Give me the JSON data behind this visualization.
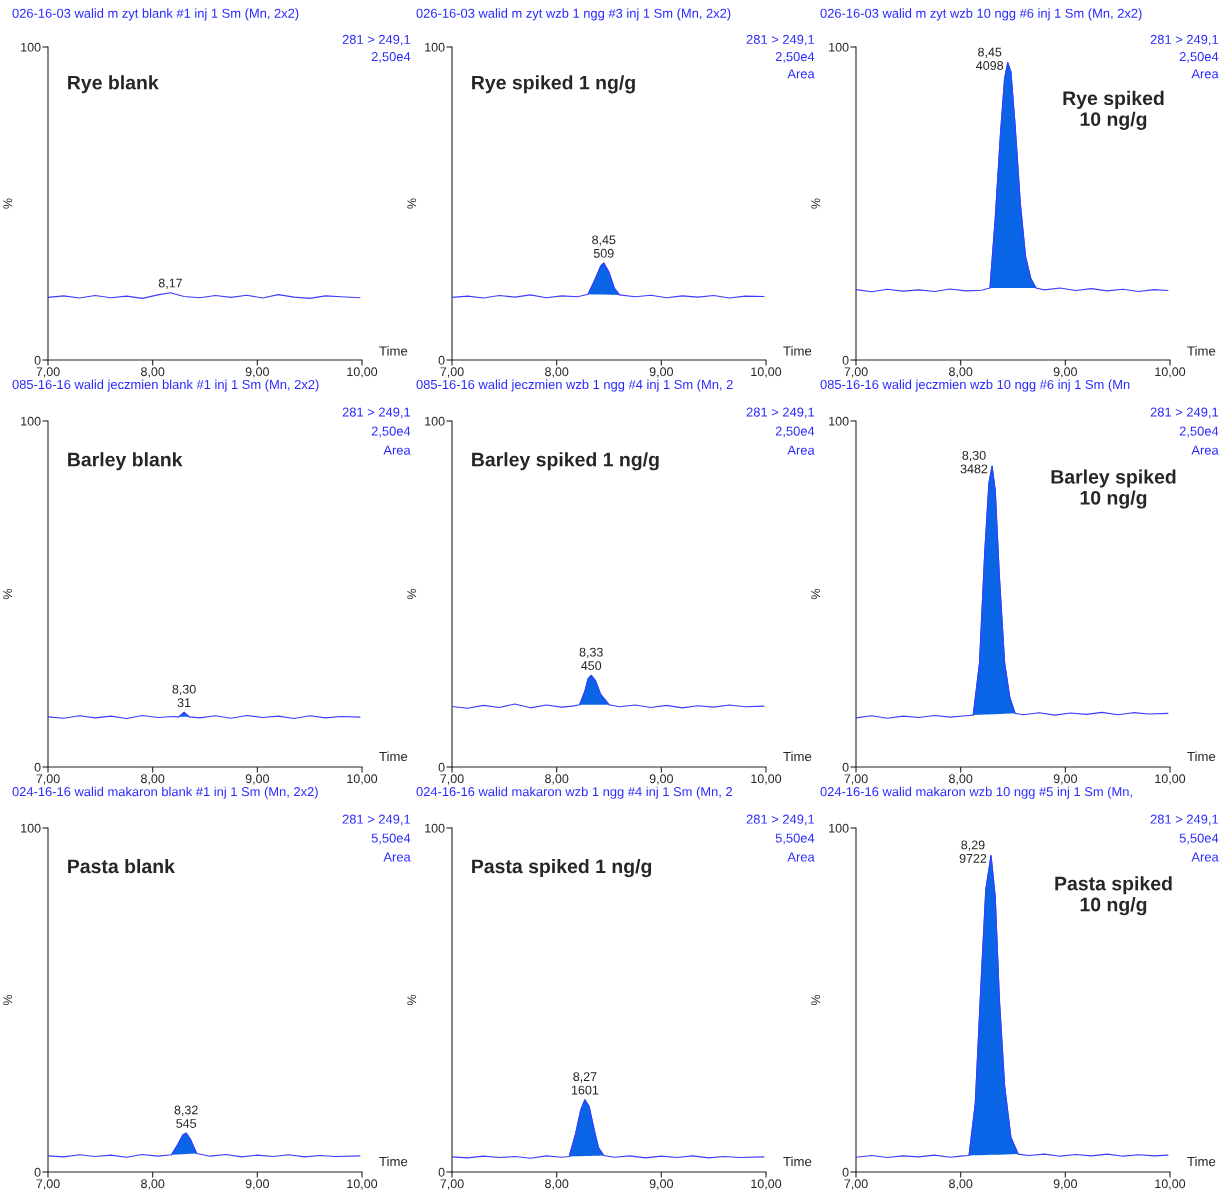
{
  "chart_data": [
    {
      "type": "line",
      "title": "026-16-03 walid m zyt blank #1 inj 1 Sm (Mn, 2x2)",
      "subtitle": "Rye blank",
      "xlabel": "Time",
      "ylabel": "%",
      "xlim": [
        7,
        10
      ],
      "ylim": [
        0,
        100
      ],
      "xticks": [
        {
          "value": 7,
          "label": "7,00"
        },
        {
          "value": 8,
          "label": "8,00"
        },
        {
          "value": 9,
          "label": "9,00"
        },
        {
          "value": 10,
          "label": "10,00"
        }
      ],
      "yticks": [
        0,
        100
      ],
      "grid": false,
      "annotations": [
        "281 > 249,1",
        "2,50e4",
        {
          "text": "8,17",
          "x": 8.17,
          "y": 21.5
        }
      ],
      "series": [
        {
          "type": "line",
          "color": "#3c3cff",
          "x": [
            7.0,
            7.15,
            7.3,
            7.45,
            7.6,
            7.75,
            7.9,
            8.05,
            8.17,
            8.3,
            8.45,
            8.6,
            8.75,
            8.9,
            9.05,
            9.2,
            9.35,
            9.5,
            9.65,
            9.8,
            9.98
          ],
          "values": [
            20,
            20.5,
            19.8,
            20.6,
            19.9,
            20.4,
            19.7,
            20.8,
            21.5,
            20.3,
            19.9,
            20.6,
            20.0,
            20.7,
            19.8,
            20.9,
            20.1,
            19.7,
            20.5,
            20.2,
            19.9
          ]
        }
      ]
    },
    {
      "type": "line",
      "title": "026-16-03 walid m zyt wzb 1 ngg #3 inj 1 Sm (Mn, 2x2)",
      "subtitle": "Rye spiked 1 ng/g",
      "xlabel": "Time",
      "ylabel": "%",
      "xlim": [
        7,
        10
      ],
      "ylim": [
        0,
        100
      ],
      "xticks": [
        {
          "value": 7,
          "label": "7,00"
        },
        {
          "value": 8,
          "label": "8,00"
        },
        {
          "value": 9,
          "label": "9,00"
        },
        {
          "value": 10,
          "label": "10,00"
        }
      ],
      "yticks": [
        0,
        100
      ],
      "grid": false,
      "annotations": [
        "281 > 249,1",
        "2,50e4",
        "Area",
        {
          "text": "8,45\n509",
          "x": 8.45,
          "y": 31
        }
      ],
      "series": [
        {
          "type": "line",
          "color": "#3c3cff",
          "x": [
            7.0,
            7.15,
            7.3,
            7.45,
            7.6,
            7.75,
            7.9,
            8.05,
            8.2,
            8.3,
            8.37,
            8.42,
            8.45,
            8.5,
            8.55,
            8.6,
            8.75,
            8.9,
            9.05,
            9.2,
            9.35,
            9.5,
            9.65,
            9.8,
            9.98
          ],
          "values": [
            20,
            20.4,
            19.8,
            20.6,
            20.1,
            20.8,
            19.9,
            20.5,
            20.2,
            21,
            26,
            30,
            31,
            28,
            23,
            20.8,
            20.2,
            20.7,
            19.9,
            20.5,
            20.1,
            20.6,
            19.8,
            20.4,
            20.3
          ]
        },
        {
          "type": "area",
          "color": "#0a64e6",
          "x": [
            8.3,
            8.37,
            8.42,
            8.45,
            8.5,
            8.55,
            8.6
          ],
          "values": [
            21,
            26,
            30,
            31,
            28,
            23,
            20.8
          ]
        }
      ]
    },
    {
      "type": "line",
      "title": "026-16-03 walid m zyt wzb 10 ngg #6 inj 1 Sm (Mn, 2x2)",
      "subtitle": "Rye spiked\n10 ng/g",
      "xlabel": "Time",
      "ylabel": "%",
      "xlim": [
        7,
        10
      ],
      "ylim": [
        0,
        100
      ],
      "xticks": [
        {
          "value": 7,
          "label": "7,00"
        },
        {
          "value": 8,
          "label": "8,00"
        },
        {
          "value": 9,
          "label": "9,00"
        },
        {
          "value": 10,
          "label": "10,00"
        }
      ],
      "yticks": [
        0,
        100
      ],
      "grid": false,
      "annotations": [
        "281 > 249,1",
        "2,50e4",
        "Area",
        {
          "text": "8,45\n4098",
          "x": 8.45,
          "y": 95
        }
      ],
      "series": [
        {
          "type": "line",
          "color": "#3c3cff",
          "x": [
            7.0,
            7.15,
            7.3,
            7.45,
            7.6,
            7.75,
            7.9,
            8.05,
            8.2,
            8.28,
            8.33,
            8.38,
            8.42,
            8.45,
            8.48,
            8.52,
            8.57,
            8.62,
            8.67,
            8.72,
            8.8,
            8.95,
            9.1,
            9.25,
            9.4,
            9.55,
            9.7,
            9.85,
            9.98
          ],
          "values": [
            22.5,
            21.8,
            22.6,
            22,
            22.4,
            21.9,
            22.7,
            22.1,
            22.3,
            23,
            45,
            72,
            90,
            95,
            92,
            75,
            50,
            33,
            26,
            23,
            22.4,
            23,
            22.2,
            22.8,
            22.1,
            22.6,
            21.9,
            22.5,
            22.2
          ]
        },
        {
          "type": "area",
          "color": "#0a64e6",
          "x": [
            8.28,
            8.33,
            8.38,
            8.42,
            8.45,
            8.48,
            8.52,
            8.57,
            8.62,
            8.67,
            8.72
          ],
          "values": [
            23,
            45,
            72,
            90,
            95,
            92,
            75,
            50,
            33,
            26,
            23
          ]
        }
      ]
    },
    {
      "type": "line",
      "title": "085-16-16 walid jeczmien blank #1 inj 1 Sm (Mn, 2x2)",
      "subtitle": "Barley blank",
      "xlabel": "Time",
      "ylabel": "%",
      "xlim": [
        7,
        10
      ],
      "ylim": [
        0,
        100
      ],
      "xticks": [
        {
          "value": 7,
          "label": "7,00"
        },
        {
          "value": 8,
          "label": "8,00"
        },
        {
          "value": 9,
          "label": "9,00"
        },
        {
          "value": 10,
          "label": "10,00"
        }
      ],
      "yticks": [
        0,
        100
      ],
      "grid": false,
      "annotations": [
        "281 > 249,1",
        "2,50e4",
        "Area",
        {
          "text": "8,30\n31",
          "x": 8.3,
          "y": 15.8
        }
      ],
      "series": [
        {
          "type": "line",
          "color": "#3c3cff",
          "x": [
            7.0,
            7.15,
            7.3,
            7.45,
            7.6,
            7.75,
            7.9,
            8.05,
            8.2,
            8.25,
            8.3,
            8.35,
            8.45,
            8.6,
            8.75,
            8.9,
            9.05,
            9.2,
            9.35,
            9.5,
            9.65,
            9.8,
            9.98
          ],
          "values": [
            14.5,
            14.1,
            14.8,
            14.2,
            14.7,
            14.0,
            14.9,
            14.3,
            14.6,
            14.5,
            15.8,
            14.5,
            14.2,
            14.8,
            14.1,
            14.9,
            14.3,
            14.7,
            14.0,
            14.8,
            14.2,
            14.6,
            14.4
          ]
        },
        {
          "type": "area",
          "color": "#0a64e6",
          "x": [
            8.25,
            8.3,
            8.35
          ],
          "values": [
            14.5,
            15.8,
            14.5
          ]
        }
      ]
    },
    {
      "type": "line",
      "title": "085-16-16 walid jeczmien wzb 1 ngg #4 inj 1 Sm (Mn, 2",
      "subtitle": "Barley spiked 1 ng/g",
      "xlabel": "Time",
      "ylabel": "%",
      "xlim": [
        7,
        10
      ],
      "ylim": [
        0,
        100
      ],
      "xticks": [
        {
          "value": 7,
          "label": "7,00"
        },
        {
          "value": 8,
          "label": "8,00"
        },
        {
          "value": 9,
          "label": "9,00"
        },
        {
          "value": 10,
          "label": "10,00"
        }
      ],
      "yticks": [
        0,
        100
      ],
      "grid": false,
      "annotations": [
        "281 > 249,1",
        "2,50e4",
        "Area",
        {
          "text": "8,33\n450",
          "x": 8.33,
          "y": 26.5
        }
      ],
      "series": [
        {
          "type": "line",
          "color": "#3c3cff",
          "x": [
            7.0,
            7.15,
            7.3,
            7.45,
            7.6,
            7.75,
            7.9,
            8.05,
            8.15,
            8.22,
            8.27,
            8.3,
            8.33,
            8.37,
            8.42,
            8.5,
            8.6,
            8.75,
            8.9,
            9.05,
            9.2,
            9.35,
            9.5,
            9.65,
            9.8,
            9.98
          ],
          "values": [
            17.5,
            17.0,
            17.8,
            17.2,
            18.2,
            17.1,
            17.9,
            17.3,
            17.6,
            18,
            22,
            25.5,
            26.5,
            25,
            21,
            18,
            17.4,
            17.9,
            17.2,
            17.8,
            17.1,
            17.7,
            17.3,
            17.9,
            17.4,
            17.6
          ]
        },
        {
          "type": "area",
          "color": "#0a64e6",
          "x": [
            8.22,
            8.27,
            8.3,
            8.33,
            8.37,
            8.42,
            8.5
          ],
          "values": [
            18,
            22,
            25.5,
            26.5,
            25,
            21,
            18
          ]
        }
      ]
    },
    {
      "type": "line",
      "title": "085-16-16 walid jeczmien wzb 10 ngg #6 inj 1 Sm (Mn",
      "subtitle": "Barley spiked\n10 ng/g",
      "xlabel": "Time",
      "ylabel": "%",
      "xlim": [
        7,
        10
      ],
      "ylim": [
        0,
        100
      ],
      "xticks": [
        {
          "value": 7,
          "label": "7,00"
        },
        {
          "value": 8,
          "label": "8,00"
        },
        {
          "value": 9,
          "label": "9,00"
        },
        {
          "value": 10,
          "label": "10,00"
        }
      ],
      "yticks": [
        0,
        100
      ],
      "grid": false,
      "annotations": [
        "281 > 249,1",
        "2,50e4",
        "Area",
        {
          "text": "8,30\n3482",
          "x": 8.3,
          "y": 87
        }
      ],
      "series": [
        {
          "type": "line",
          "color": "#3c3cff",
          "x": [
            7.0,
            7.15,
            7.3,
            7.45,
            7.6,
            7.75,
            7.9,
            8.05,
            8.12,
            8.18,
            8.23,
            8.27,
            8.3,
            8.33,
            8.37,
            8.42,
            8.47,
            8.52,
            8.6,
            8.75,
            8.9,
            9.05,
            9.2,
            9.35,
            9.5,
            9.65,
            9.8,
            9.98
          ],
          "values": [
            14.2,
            14.8,
            14.1,
            14.7,
            14.3,
            14.9,
            14.4,
            14.8,
            15,
            30,
            62,
            82,
            87,
            80,
            55,
            30,
            20,
            15.5,
            15.1,
            15.7,
            15.0,
            15.6,
            15.2,
            15.8,
            15.1,
            15.7,
            15.3,
            15.5
          ]
        },
        {
          "type": "area",
          "color": "#0a64e6",
          "x": [
            8.12,
            8.18,
            8.23,
            8.27,
            8.3,
            8.33,
            8.37,
            8.42,
            8.47,
            8.52
          ],
          "values": [
            15,
            30,
            62,
            82,
            87,
            80,
            55,
            30,
            20,
            15.5
          ]
        }
      ]
    },
    {
      "type": "line",
      "title": "024-16-16 walid makaron blank #1 inj 1 Sm (Mn, 2x2)",
      "subtitle": "Pasta blank",
      "xlabel": "Time",
      "ylabel": "%",
      "xlim": [
        7,
        10
      ],
      "ylim": [
        0,
        100
      ],
      "xticks": [
        {
          "value": 7,
          "label": "7,00"
        },
        {
          "value": 8,
          "label": "8,00"
        },
        {
          "value": 9,
          "label": "9,00"
        },
        {
          "value": 10,
          "label": "10,00"
        }
      ],
      "yticks": [
        0,
        100
      ],
      "grid": false,
      "annotations": [
        "281 > 249,1",
        "5,50e4",
        "Area",
        {
          "text": "8,32\n545",
          "x": 8.32,
          "y": 11.3
        }
      ],
      "series": [
        {
          "type": "line",
          "color": "#3c3cff",
          "x": [
            7.0,
            7.15,
            7.3,
            7.45,
            7.6,
            7.75,
            7.9,
            8.05,
            8.18,
            8.24,
            8.29,
            8.32,
            8.36,
            8.42,
            8.55,
            8.7,
            8.85,
            9.0,
            9.15,
            9.3,
            9.45,
            9.6,
            9.75,
            9.98
          ],
          "values": [
            4.7,
            4.4,
            5.0,
            4.5,
            4.9,
            4.3,
            5.1,
            4.6,
            5,
            8,
            10.8,
            11.3,
            9.5,
            5.4,
            4.6,
            5.1,
            4.4,
            4.9,
            4.5,
            5.0,
            4.4,
            4.8,
            4.5,
            4.7
          ]
        },
        {
          "type": "area",
          "color": "#0a64e6",
          "x": [
            8.18,
            8.24,
            8.29,
            8.32,
            8.36,
            8.42
          ],
          "values": [
            5,
            8,
            10.8,
            11.3,
            9.5,
            5.4
          ]
        }
      ]
    },
    {
      "type": "line",
      "title": "024-16-16 walid makaron wzb 1 ngg #4 inj 1 Sm (Mn, 2",
      "subtitle": "Pasta spiked 1 ng/g",
      "xlabel": "Time",
      "ylabel": "%",
      "xlim": [
        7,
        10
      ],
      "ylim": [
        0,
        100
      ],
      "xticks": [
        {
          "value": 7,
          "label": "7,00"
        },
        {
          "value": 8,
          "label": "8,00"
        },
        {
          "value": 9,
          "label": "9,00"
        },
        {
          "value": 10,
          "label": "10,00"
        }
      ],
      "yticks": [
        0,
        100
      ],
      "grid": false,
      "annotations": [
        "281 > 249,1",
        "5,50e4",
        "Area",
        {
          "text": "8,27\n1601",
          "x": 8.27,
          "y": 21
        }
      ],
      "series": [
        {
          "type": "line",
          "color": "#3c3cff",
          "x": [
            7.0,
            7.15,
            7.3,
            7.45,
            7.6,
            7.75,
            7.9,
            8.05,
            8.12,
            8.18,
            8.23,
            8.27,
            8.31,
            8.36,
            8.4,
            8.45,
            8.55,
            8.7,
            8.85,
            9.0,
            9.15,
            9.3,
            9.45,
            9.6,
            9.75,
            9.98
          ],
          "values": [
            4.4,
            4.1,
            4.6,
            4.2,
            4.5,
            4.0,
            4.7,
            4.3,
            4.5,
            11,
            18,
            21,
            19,
            12,
            7,
            4.8,
            4.3,
            4.7,
            4.1,
            4.6,
            4.2,
            4.7,
            4.1,
            4.5,
            4.2,
            4.4
          ]
        },
        {
          "type": "area",
          "color": "#0a64e6",
          "x": [
            8.12,
            8.18,
            8.23,
            8.27,
            8.31,
            8.36,
            8.4,
            8.45
          ],
          "values": [
            4.5,
            11,
            18,
            21,
            19,
            12,
            7,
            4.8
          ]
        }
      ]
    },
    {
      "type": "line",
      "title": "024-16-16 walid makaron wzb 10 ngg #5 inj 1 Sm (Mn,",
      "subtitle": "Pasta spiked\n10 ng/g",
      "xlabel": "Time",
      "ylabel": "%",
      "xlim": [
        7,
        10
      ],
      "ylim": [
        0,
        100
      ],
      "xticks": [
        {
          "value": 7,
          "label": "7,00"
        },
        {
          "value": 8,
          "label": "8,00"
        },
        {
          "value": 9,
          "label": "9,00"
        },
        {
          "value": 10,
          "label": "10,00"
        }
      ],
      "yticks": [
        0,
        100
      ],
      "grid": false,
      "annotations": [
        "281 > 249,1",
        "5,50e4",
        "Area",
        {
          "text": "8,29\n9722",
          "x": 8.29,
          "y": 92
        }
      ],
      "series": [
        {
          "type": "line",
          "color": "#3c3cff",
          "x": [
            7.0,
            7.15,
            7.3,
            7.45,
            7.6,
            7.75,
            7.9,
            8.0,
            8.08,
            8.14,
            8.19,
            8.24,
            8.29,
            8.33,
            8.37,
            8.42,
            8.48,
            8.55,
            8.65,
            8.8,
            8.95,
            9.1,
            9.25,
            9.4,
            9.55,
            9.7,
            9.85,
            9.98
          ],
          "values": [
            4.3,
            4.8,
            4.2,
            4.7,
            4.4,
            4.9,
            4.3,
            4.6,
            4.8,
            20,
            52,
            82,
            92,
            80,
            50,
            25,
            10,
            5.2,
            4.8,
            5.2,
            4.6,
            5.1,
            4.7,
            5.2,
            4.6,
            5.0,
            4.7,
            4.9
          ]
        },
        {
          "type": "area",
          "color": "#0a64e6",
          "x": [
            8.08,
            8.14,
            8.19,
            8.24,
            8.29,
            8.33,
            8.37,
            8.42,
            8.48,
            8.55
          ],
          "values": [
            4.8,
            20,
            52,
            82,
            92,
            80,
            50,
            25,
            10,
            5.2
          ]
        }
      ]
    }
  ]
}
